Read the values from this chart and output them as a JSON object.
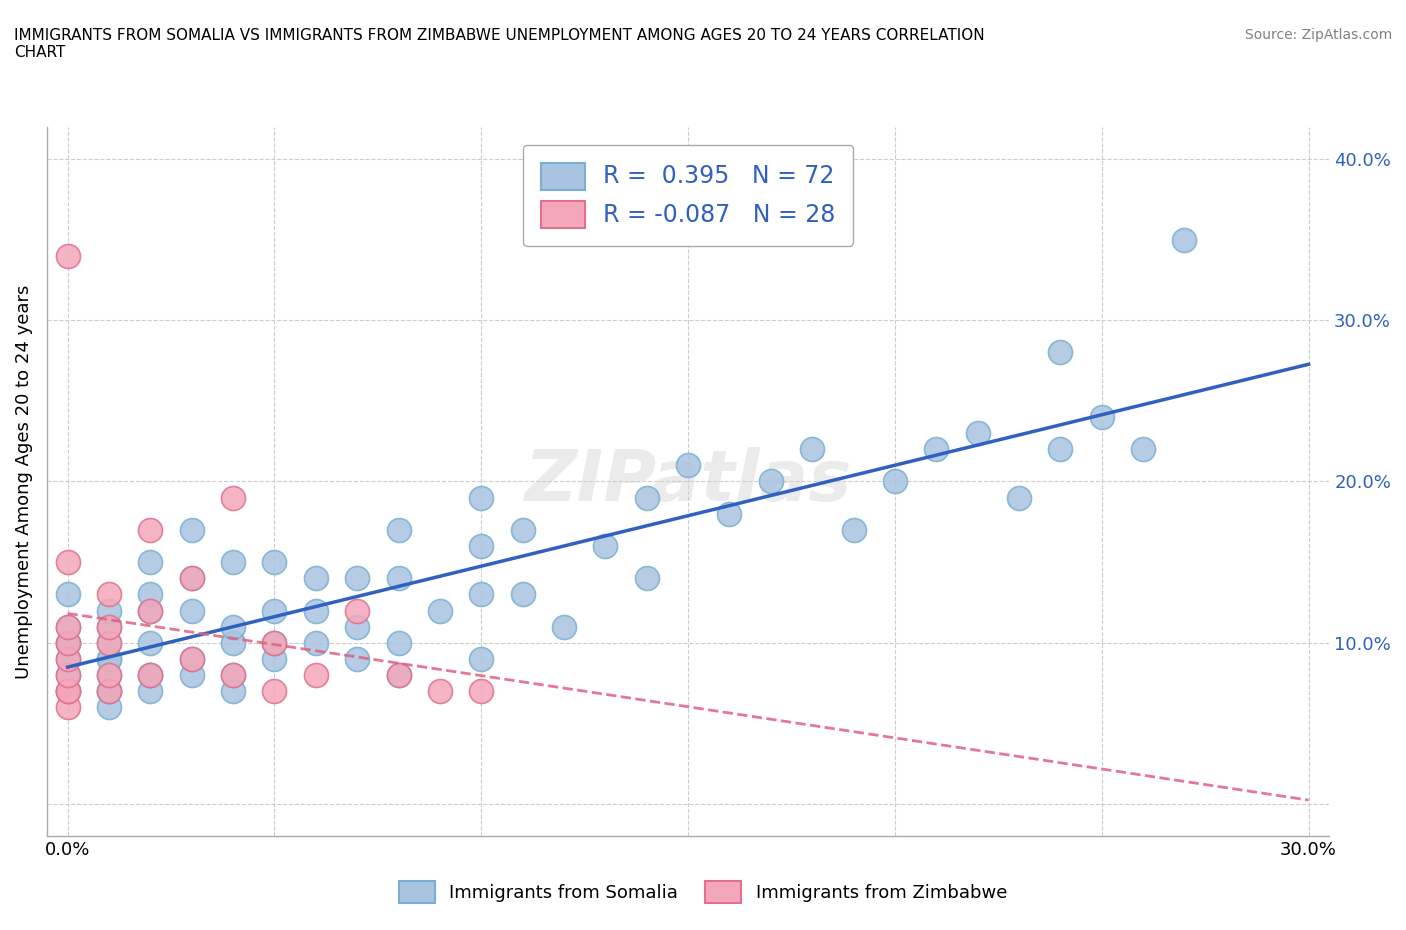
{
  "title": "IMMIGRANTS FROM SOMALIA VS IMMIGRANTS FROM ZIMBABWE UNEMPLOYMENT AMONG AGES 20 TO 24 YEARS CORRELATION\nCHART",
  "source_text": "Source: ZipAtlas.com",
  "ylabel": "Unemployment Among Ages 20 to 24 years",
  "xlabel": "",
  "xlim": [
    0.0,
    0.3
  ],
  "ylim": [
    -0.02,
    0.42
  ],
  "yticks": [
    0.0,
    0.1,
    0.2,
    0.3,
    0.4
  ],
  "xticks": [
    0.0,
    0.05,
    0.1,
    0.15,
    0.2,
    0.25,
    0.3
  ],
  "xtick_labels": [
    "0.0%",
    "",
    "",
    "",
    "",
    "",
    "30.0%"
  ],
  "ytick_labels": [
    "",
    "10.0%",
    "20.0%",
    "30.0%",
    "40.0%"
  ],
  "somalia_color": "#a8c4e0",
  "somalia_edge": "#7aafd4",
  "zimbabwe_color": "#f4a7b9",
  "zimbabwe_edge": "#e07090",
  "trend_somalia_color": "#3060c0",
  "trend_zimbabwe_color": "#e06080",
  "R_somalia": 0.395,
  "N_somalia": 72,
  "R_zimbabwe": -0.087,
  "N_zimbabwe": 28,
  "somalia_x": [
    0.0,
    0.0,
    0.0,
    0.0,
    0.0,
    0.0,
    0.0,
    0.01,
    0.01,
    0.01,
    0.01,
    0.01,
    0.01,
    0.01,
    0.01,
    0.01,
    0.02,
    0.02,
    0.02,
    0.02,
    0.02,
    0.02,
    0.02,
    0.03,
    0.03,
    0.03,
    0.03,
    0.03,
    0.04,
    0.04,
    0.04,
    0.04,
    0.04,
    0.05,
    0.05,
    0.05,
    0.05,
    0.06,
    0.06,
    0.06,
    0.07,
    0.07,
    0.07,
    0.08,
    0.08,
    0.08,
    0.08,
    0.09,
    0.1,
    0.1,
    0.1,
    0.1,
    0.11,
    0.11,
    0.12,
    0.13,
    0.14,
    0.14,
    0.15,
    0.16,
    0.17,
    0.18,
    0.19,
    0.2,
    0.21,
    0.22,
    0.23,
    0.24,
    0.24,
    0.25,
    0.26,
    0.27
  ],
  "somalia_y": [
    0.07,
    0.08,
    0.09,
    0.1,
    0.1,
    0.11,
    0.13,
    0.06,
    0.07,
    0.07,
    0.08,
    0.09,
    0.09,
    0.1,
    0.11,
    0.12,
    0.07,
    0.08,
    0.08,
    0.1,
    0.12,
    0.13,
    0.15,
    0.08,
    0.09,
    0.12,
    0.14,
    0.17,
    0.07,
    0.08,
    0.1,
    0.11,
    0.15,
    0.09,
    0.1,
    0.12,
    0.15,
    0.1,
    0.12,
    0.14,
    0.09,
    0.11,
    0.14,
    0.08,
    0.1,
    0.14,
    0.17,
    0.12,
    0.09,
    0.13,
    0.16,
    0.19,
    0.13,
    0.17,
    0.11,
    0.16,
    0.14,
    0.19,
    0.21,
    0.18,
    0.2,
    0.22,
    0.17,
    0.2,
    0.22,
    0.23,
    0.19,
    0.22,
    0.28,
    0.24,
    0.22,
    0.35
  ],
  "zimbabwe_x": [
    0.0,
    0.0,
    0.0,
    0.0,
    0.0,
    0.0,
    0.0,
    0.0,
    0.0,
    0.01,
    0.01,
    0.01,
    0.01,
    0.01,
    0.02,
    0.02,
    0.02,
    0.03,
    0.03,
    0.04,
    0.04,
    0.05,
    0.05,
    0.06,
    0.07,
    0.08,
    0.09,
    0.1
  ],
  "zimbabwe_y": [
    0.06,
    0.07,
    0.07,
    0.08,
    0.09,
    0.1,
    0.11,
    0.15,
    0.34,
    0.07,
    0.08,
    0.1,
    0.11,
    0.13,
    0.08,
    0.12,
    0.17,
    0.09,
    0.14,
    0.08,
    0.19,
    0.07,
    0.1,
    0.08,
    0.12,
    0.08,
    0.07,
    0.07
  ],
  "watermark": "ZIPatlas",
  "figsize": [
    14.06,
    9.3
  ],
  "dpi": 100
}
